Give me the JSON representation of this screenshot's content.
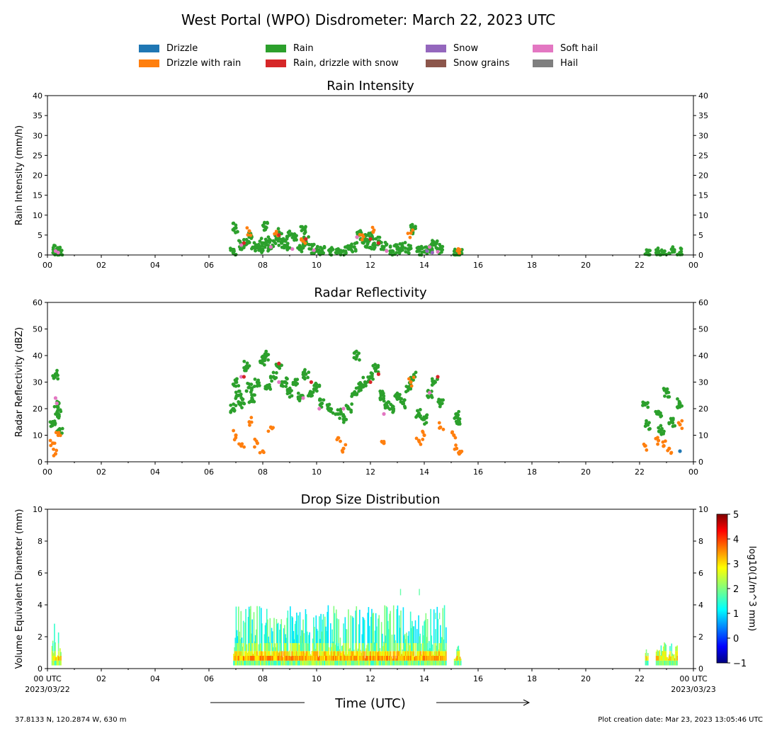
{
  "figure": {
    "title": "West Portal (WPO) Disdrometer: March 22, 2023 UTC",
    "footer_left": "37.8133 N, 120.2874 W, 630 m",
    "footer_right": "Plot creation date: Mar 23, 2023 13:05:46 UTC",
    "x_axis_label": "Time (UTC)",
    "x_start_label": [
      "00 UTC",
      "2023/03/22"
    ],
    "x_end_label": [
      "00 UTC",
      "2023/03/23"
    ]
  },
  "legend": [
    {
      "name": "Drizzle",
      "color": "#1f77b4"
    },
    {
      "name": "Drizzle with rain",
      "color": "#ff7f0e"
    },
    {
      "name": "Rain",
      "color": "#2ca02c"
    },
    {
      "name": "Rain, drizzle with snow",
      "color": "#d62728"
    },
    {
      "name": "Snow",
      "color": "#9467bd"
    },
    {
      "name": "Snow grains",
      "color": "#8c564b"
    },
    {
      "name": "Soft hail",
      "color": "#e377c2"
    },
    {
      "name": "Hail",
      "color": "#7f7f7f"
    }
  ],
  "chart_data": [
    {
      "type": "scatter",
      "title": "Rain Intensity",
      "ylabel": "Rain Intensity (mm/h)",
      "xlim": [
        0,
        24
      ],
      "ylim": [
        0,
        40
      ],
      "yticks": [
        0,
        5,
        10,
        15,
        20,
        25,
        30,
        35,
        40
      ],
      "xticks": [
        "00",
        "02",
        "04",
        "06",
        "08",
        "10",
        "12",
        "14",
        "16",
        "18",
        "20",
        "22",
        "00"
      ],
      "series": [
        {
          "name": "Rain",
          "x": [
            0.3,
            0.35,
            0.4,
            0.45,
            6.9,
            7.0,
            7.2,
            7.4,
            7.5,
            7.7,
            7.9,
            8.0,
            8.1,
            8.2,
            8.3,
            8.5,
            8.6,
            8.7,
            8.9,
            9.0,
            9.2,
            9.4,
            9.5,
            9.6,
            9.8,
            10.0,
            10.2,
            10.5,
            10.8,
            11.0,
            11.2,
            11.4,
            11.6,
            11.8,
            11.9,
            12.0,
            12.1,
            12.3,
            12.5,
            12.8,
            13.0,
            13.2,
            13.4,
            13.6,
            13.8,
            14.0,
            14.2,
            14.4,
            14.6,
            15.2,
            15.3,
            22.3,
            22.7,
            22.9,
            23.2,
            23.5
          ],
          "y": [
            0.8,
            1.5,
            0.9,
            0.4,
            0.6,
            6.8,
            2.5,
            3.0,
            4.5,
            2.0,
            1.5,
            3.0,
            7.0,
            3.5,
            2.0,
            4.0,
            5.5,
            3.0,
            2.5,
            5.0,
            4.5,
            2.0,
            6.5,
            3.5,
            1.5,
            1.0,
            1.0,
            0.8,
            1.5,
            1.0,
            1.5,
            2.0,
            5.0,
            4.0,
            3.0,
            4.5,
            2.5,
            3.5,
            2.0,
            1.0,
            1.5,
            2.0,
            1.5,
            6.5,
            1.0,
            0.8,
            1.5,
            2.5,
            1.5,
            0.8,
            0.6,
            0.6,
            0.6,
            0.3,
            1.5,
            0.6
          ]
        },
        {
          "name": "Drizzle with rain",
          "x": [
            7.5,
            8.5,
            9.5,
            11.7,
            12.1,
            13.5,
            15.3
          ],
          "y": [
            6.0,
            5.5,
            3.5,
            5.0,
            5.8,
            5.5,
            0.5
          ]
        },
        {
          "name": "Rain, drizzle with snow",
          "x": [
            7.3,
            8.6,
            9.6,
            12.0,
            12.3
          ],
          "y": [
            3.0,
            5.0,
            4.0,
            4.0,
            3.0
          ]
        },
        {
          "name": "Soft hail",
          "x": [
            0.3,
            0.4,
            7.2,
            8.3,
            9.1,
            9.9,
            11.5,
            12.6,
            14.2,
            14.5
          ],
          "y": [
            1.0,
            0.6,
            2.5,
            2.0,
            1.5,
            1.2,
            4.5,
            1.0,
            2.0,
            0.8
          ]
        },
        {
          "name": "Snow",
          "x": [
            14.1,
            14.3
          ],
          "y": [
            1.0,
            0.6
          ]
        }
      ]
    },
    {
      "type": "scatter",
      "title": "Radar Reflectivity",
      "ylabel": "Radar Reflectivity (dBZ)",
      "xlim": [
        0,
        24
      ],
      "ylim": [
        0,
        60
      ],
      "yticks": [
        0,
        10,
        20,
        30,
        40,
        50,
        60
      ],
      "xticks": [
        "00",
        "02",
        "04",
        "06",
        "08",
        "10",
        "12",
        "14",
        "16",
        "18",
        "20",
        "22",
        "00"
      ],
      "series": [
        {
          "name": "Rain",
          "x": [
            0.2,
            0.3,
            0.35,
            0.4,
            0.45,
            6.9,
            7.0,
            7.1,
            7.2,
            7.4,
            7.5,
            7.6,
            7.8,
            8.0,
            8.1,
            8.2,
            8.4,
            8.6,
            8.8,
            9.0,
            9.2,
            9.4,
            9.6,
            9.8,
            10.0,
            10.2,
            10.5,
            10.8,
            11.0,
            11.2,
            11.4,
            11.5,
            11.6,
            11.8,
            12.0,
            12.2,
            12.4,
            12.6,
            12.8,
            13.0,
            13.2,
            13.4,
            13.6,
            13.8,
            14.0,
            14.2,
            14.4,
            14.6,
            15.2,
            15.3,
            22.2,
            22.3,
            22.7,
            22.8,
            23.0,
            23.2,
            23.5
          ],
          "y": [
            15,
            33,
            22,
            18,
            12,
            20,
            30,
            25,
            22,
            36,
            28,
            24,
            30,
            38,
            40,
            28,
            32,
            37,
            30,
            26,
            30,
            24,
            33,
            25,
            28,
            22,
            20,
            18,
            16,
            20,
            26,
            40,
            28,
            30,
            32,
            35,
            25,
            22,
            20,
            25,
            22,
            28,
            32,
            18,
            16,
            26,
            30,
            22,
            18,
            15,
            22,
            14,
            18,
            12,
            26,
            15,
            22
          ]
        },
        {
          "name": "Drizzle with rain",
          "x": [
            0.2,
            0.3,
            0.4,
            7.0,
            7.2,
            7.5,
            7.8,
            8.0,
            8.3,
            10.8,
            11.0,
            12.5,
            13.5,
            13.8,
            14.0,
            14.6,
            15.1,
            15.2,
            15.3,
            22.2,
            22.7,
            22.9,
            23.1,
            23.5
          ],
          "y": [
            7,
            3,
            10,
            10,
            6,
            15,
            7,
            4,
            13,
            9,
            5,
            7,
            30,
            8,
            10,
            13,
            10,
            5,
            3,
            6,
            8,
            6,
            5,
            14
          ]
        },
        {
          "name": "Soft hail",
          "x": [
            0.3,
            0.35,
            7.2,
            8.6,
            9.5,
            10.1,
            11.0,
            12.5,
            14.2
          ],
          "y": [
            24,
            22,
            32,
            30,
            24,
            20,
            20,
            18,
            26
          ]
        },
        {
          "name": "Rain, drizzle with snow",
          "x": [
            7.3,
            8.6,
            9.8,
            12.0,
            12.3,
            14.5
          ],
          "y": [
            32,
            37,
            30,
            30,
            33,
            32
          ]
        },
        {
          "name": "Drizzle",
          "x": [
            23.5
          ],
          "y": [
            4
          ]
        }
      ]
    },
    {
      "type": "heatmap",
      "title": "Drop Size Distribution",
      "ylabel": "Volume Equivalent Diameter (mm)",
      "xlim": [
        0,
        24
      ],
      "ylim": [
        0,
        10
      ],
      "yticks": [
        0,
        2,
        4,
        6,
        8,
        10
      ],
      "xticks": [
        "00",
        "02",
        "04",
        "06",
        "08",
        "10",
        "12",
        "14",
        "16",
        "18",
        "20",
        "22",
        "00"
      ],
      "colorbar": {
        "label": "log10(1/m^3 mm)",
        "range": [
          -1,
          5
        ],
        "ticks": [
          -1,
          0,
          1,
          2,
          3,
          4,
          5
        ]
      },
      "active_periods_h": [
        [
          0.15,
          0.5
        ],
        [
          6.9,
          14.8
        ],
        [
          15.1,
          15.35
        ],
        [
          22.2,
          22.3
        ],
        [
          22.6,
          23.4
        ]
      ],
      "max_diameter_mm": [
        3.0,
        4.0,
        1.5,
        1.7,
        1.7
      ]
    }
  ]
}
